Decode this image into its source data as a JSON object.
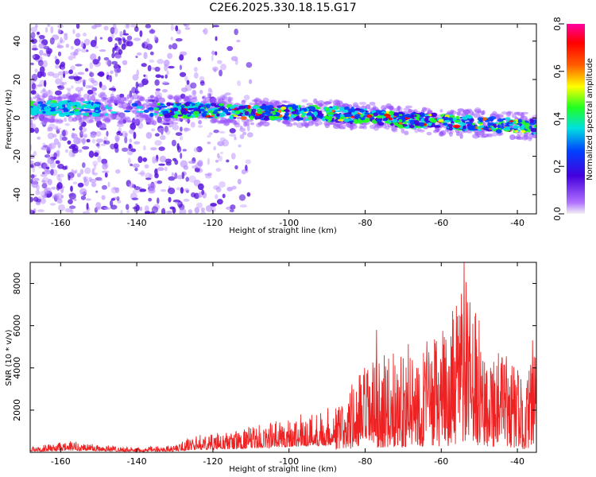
{
  "title": "C2E6.2025.330.18.15.G17",
  "chart_data": [
    {
      "type": "heatmap",
      "xlabel": "Height of straight line (km)",
      "ylabel": "Frequency (Hz)",
      "xlim": [
        -168,
        -35
      ],
      "ylim": [
        -50,
        49
      ],
      "xticks": [
        -160,
        -140,
        -120,
        -100,
        -80,
        -60,
        -40
      ],
      "yticks": [
        -40,
        -20,
        0,
        20,
        40
      ],
      "colorbar": {
        "label": "Normalized spectral amplitude",
        "range": [
          0.0,
          0.8
        ],
        "ticks": [
          0.0,
          0.2,
          0.4,
          0.6,
          0.8
        ],
        "colormap": [
          "#f2f2f2",
          "#b070ff",
          "#4400dd",
          "#0040ff",
          "#00e0e0",
          "#20ff20",
          "#ffff00",
          "#ff6000",
          "#ff0000",
          "#ff00a0"
        ]
      },
      "main_band": [
        {
          "x": -168,
          "freq": 5
        },
        {
          "x": -155,
          "freq": 5
        },
        {
          "x": -133,
          "freq": 4
        },
        {
          "x": -125,
          "freq": 4
        },
        {
          "x": -110,
          "freq": 3
        },
        {
          "x": -100,
          "freq": 3
        },
        {
          "x": -90,
          "freq": 2
        },
        {
          "x": -80,
          "freq": 1
        },
        {
          "x": -70,
          "freq": -1
        },
        {
          "x": -60,
          "freq": -2
        },
        {
          "x": -50,
          "freq": -3
        },
        {
          "x": -40,
          "freq": -4
        },
        {
          "x": -35,
          "freq": -5
        }
      ],
      "noise_region": {
        "x": [
          -168,
          -110
        ],
        "freq": [
          -50,
          49
        ]
      }
    },
    {
      "type": "line",
      "xlabel": "Height of straight line (km)",
      "ylabel": "SNR (10 * v/v)",
      "xlim": [
        -168,
        -35
      ],
      "ylim": [
        0,
        9000
      ],
      "xticks": [
        -160,
        -140,
        -120,
        -100,
        -80,
        -60,
        -40
      ],
      "yticks": [
        2000,
        4000,
        6000,
        8000
      ],
      "color": "#ee2222",
      "envelope": [
        {
          "x": -168,
          "y": 250
        },
        {
          "x": -157,
          "y": 550
        },
        {
          "x": -140,
          "y": 220
        },
        {
          "x": -130,
          "y": 350
        },
        {
          "x": -125,
          "y": 800
        },
        {
          "x": -115,
          "y": 1000
        },
        {
          "x": -108,
          "y": 1300
        },
        {
          "x": -100,
          "y": 1700
        },
        {
          "x": -93,
          "y": 2000
        },
        {
          "x": -86,
          "y": 2400
        },
        {
          "x": -84,
          "y": 3200
        },
        {
          "x": -80,
          "y": 4200
        },
        {
          "x": -75,
          "y": 4600
        },
        {
          "x": -68,
          "y": 5200
        },
        {
          "x": -62,
          "y": 5500
        },
        {
          "x": -57,
          "y": 6200
        },
        {
          "x": -54,
          "y": 9000
        },
        {
          "x": -52,
          "y": 6800
        },
        {
          "x": -46,
          "y": 5200
        },
        {
          "x": -40,
          "y": 4200
        },
        {
          "x": -38,
          "y": 2800
        },
        {
          "x": -36,
          "y": 5200
        },
        {
          "x": -35,
          "y": 4300
        }
      ],
      "peaks": [
        {
          "x": -54,
          "y": 9000
        },
        {
          "x": -57,
          "y": 6700
        },
        {
          "x": -51,
          "y": 6600
        },
        {
          "x": -77,
          "y": 5800
        },
        {
          "x": -36,
          "y": 5300
        }
      ]
    }
  ]
}
